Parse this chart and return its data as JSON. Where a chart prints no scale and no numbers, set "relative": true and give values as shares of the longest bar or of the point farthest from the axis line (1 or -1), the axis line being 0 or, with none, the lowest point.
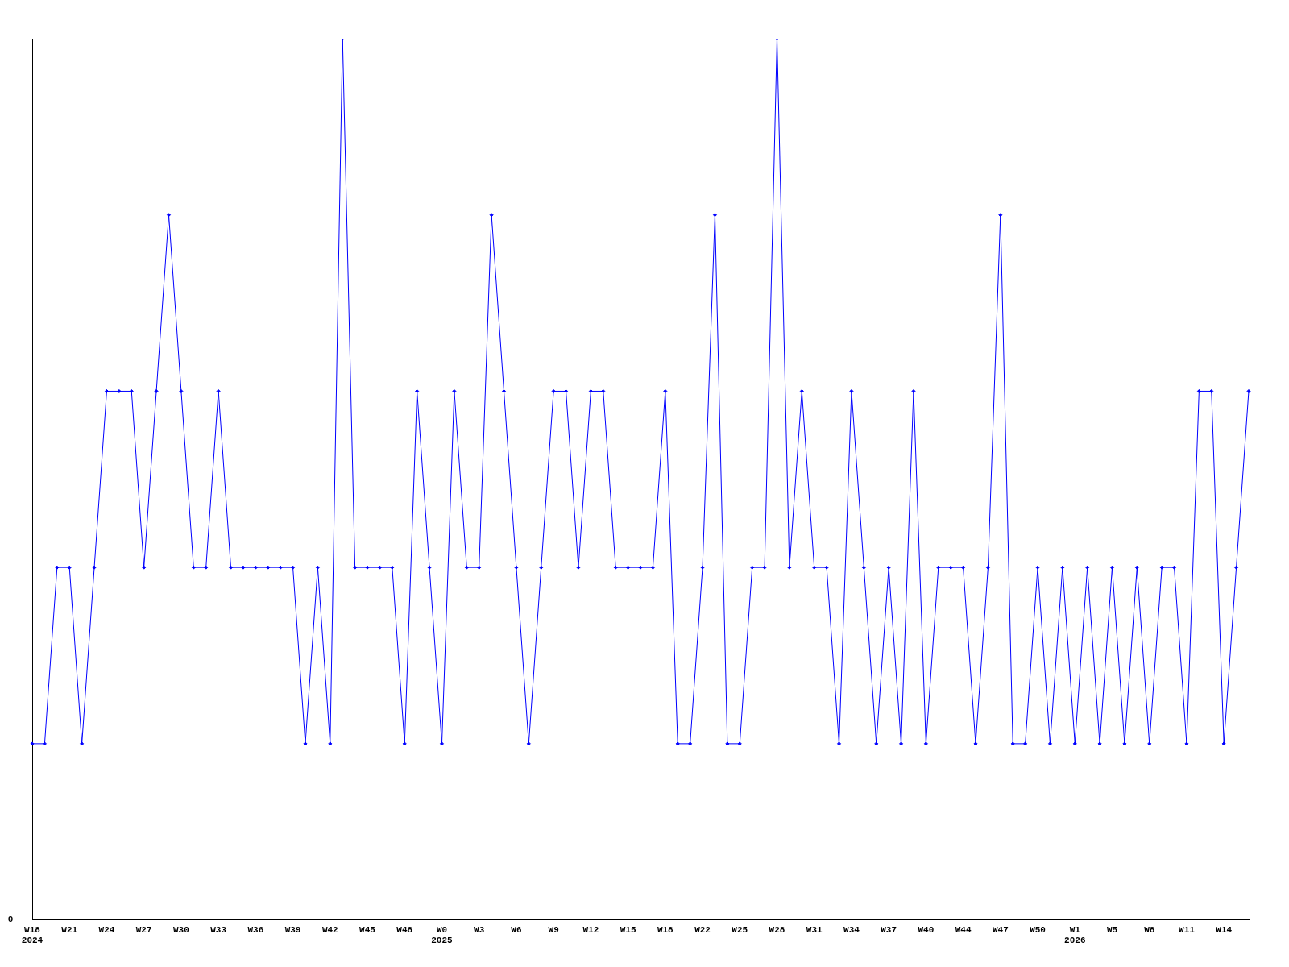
{
  "chart_data": {
    "type": "line",
    "relative": true,
    "color": "#0000ff",
    "marker": "diamond",
    "grid": false,
    "legend": false,
    "categories": [
      "W18\n2024",
      null,
      null,
      "W21",
      null,
      null,
      "W24",
      null,
      null,
      "W27",
      null,
      null,
      "W30",
      null,
      null,
      "W33",
      null,
      null,
      "W36",
      null,
      null,
      "W39",
      null,
      null,
      "W42",
      null,
      null,
      "W45",
      null,
      null,
      "W48",
      null,
      null,
      "W0\n2025",
      null,
      null,
      "W3",
      null,
      null,
      "W6",
      null,
      null,
      "W9",
      null,
      null,
      "W12",
      null,
      null,
      "W15",
      null,
      null,
      "W18",
      null,
      null,
      "W22",
      null,
      null,
      "W25",
      null,
      null,
      "W28",
      null,
      null,
      "W31",
      null,
      null,
      "W34",
      null,
      null,
      "W37",
      null,
      null,
      "W40",
      null,
      null,
      "W44",
      null,
      null,
      "W47",
      null,
      null,
      "W50",
      null,
      null,
      "W1\n2026",
      null,
      null,
      "W5",
      null,
      null,
      "W8",
      null,
      null,
      "W11",
      null,
      null,
      "W14",
      null,
      null
    ],
    "values": [
      0.2,
      0.2,
      0.4,
      0.4,
      0.2,
      0.4,
      0.6,
      0.6,
      0.6,
      0.4,
      0.6,
      0.8,
      0.6,
      0.4,
      0.4,
      0.6,
      0.4,
      0.4,
      0.4,
      0.4,
      0.4,
      0.4,
      0.2,
      0.4,
      0.2,
      1,
      0.4,
      0.4,
      0.4,
      0.4,
      0.2,
      0.6,
      0.4,
      0.2,
      0.6,
      0.4,
      0.4,
      0.8,
      0.6,
      0.4,
      0.2,
      0.4,
      0.6,
      0.6,
      0.4,
      0.6,
      0.6,
      0.4,
      0.4,
      0.4,
      0.4,
      0.6,
      0.2,
      0.2,
      0.4,
      0.8,
      0.2,
      0.2,
      0.4,
      0.4,
      1,
      0.4,
      0.6,
      0.4,
      0.4,
      0.2,
      0.6,
      0.4,
      0.2,
      0.4,
      0.2,
      0.6,
      0.2,
      0.4,
      0.4,
      0.4,
      0.2,
      0.4,
      0.8,
      0.2,
      0.2,
      0.4,
      0.2,
      0.4,
      0.2,
      0.4,
      0.2,
      0.4,
      0.2,
      0.4,
      0.2,
      0.4,
      0.4,
      0.2,
      0.6,
      0.6,
      0.2,
      0.4,
      0.6
    ],
    "annotations": [
      "0"
    ]
  }
}
